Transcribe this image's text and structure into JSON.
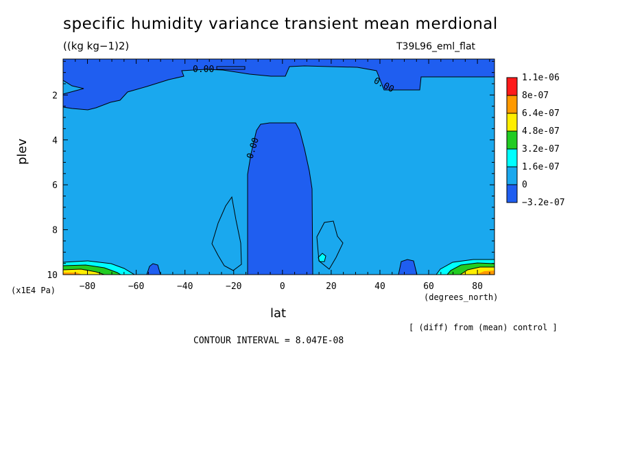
{
  "figure": {
    "title": "specific humidity variance transient mean merdional",
    "units": "((kg kg−1)2)",
    "run_name": "T39L96_eml_flat",
    "x_units": "(degrees_north)",
    "y_units": "(x1E4 Pa)",
    "x_label": "lat",
    "y_label": "plev",
    "diff_note": "[ (diff) from (mean) control ]",
    "contour_interval": "CONTOUR INTERVAL = 8.047E-08"
  },
  "chart_data": {
    "type": "heatmap",
    "title": "specific humidity variance transient mean merdional",
    "xlabel": "lat",
    "ylabel": "plev",
    "xlim": [
      -90,
      87
    ],
    "ylim": [
      10,
      0.4
    ],
    "x_ticks": [
      -80,
      -60,
      -40,
      -20,
      0,
      20,
      40,
      60,
      80
    ],
    "x_tick_labels": [
      "−80",
      "−60",
      "−40",
      "−20",
      "0",
      "20",
      "40",
      "60",
      "80"
    ],
    "y_ticks": [
      2,
      4,
      6,
      8,
      10
    ],
    "y_tick_labels": [
      "2",
      "4",
      "6",
      "8",
      "10"
    ],
    "contour_labels": [
      "0.00",
      "0.00",
      "0.00"
    ],
    "colorbar": {
      "labels": [
        "1.1e-06",
        "8e-07",
        "6.4e-07",
        "4.8e-07",
        "3.2e-07",
        "1.6e-07",
        "0",
        "−3.2e-07"
      ],
      "colors": [
        "#ff1a1a",
        "#ff9900",
        "#ffee00",
        "#22cc22",
        "#00ffff",
        "#1aa8ee",
        "#1f5ef0"
      ]
    },
    "colors": {
      "negative": "#1f5ef0",
      "slightly_positive": "#1aa8ee",
      "cyan": "#00ffff",
      "green": "#22cc22",
      "yellow": "#ffee00",
      "orange": "#ff9900"
    },
    "regions": [
      {
        "level": "negative",
        "description_lat": [
          -90,
          87
        ],
        "plev": [
          0.4,
          2.4
        ]
      },
      {
        "level": "negative",
        "description_lat": [
          -13,
          12
        ],
        "plev": [
          3.1,
          10
        ]
      },
      {
        "level": "positive",
        "description_lat": [
          -90,
          87
        ],
        "plev": [
          1.5,
          10
        ]
      },
      {
        "level": "high",
        "description_lat": [
          -90,
          -72
        ],
        "plev": [
          9.4,
          10
        ]
      },
      {
        "level": "high",
        "description_lat": [
          64,
          87
        ],
        "plev": [
          9.3,
          10
        ]
      }
    ]
  }
}
